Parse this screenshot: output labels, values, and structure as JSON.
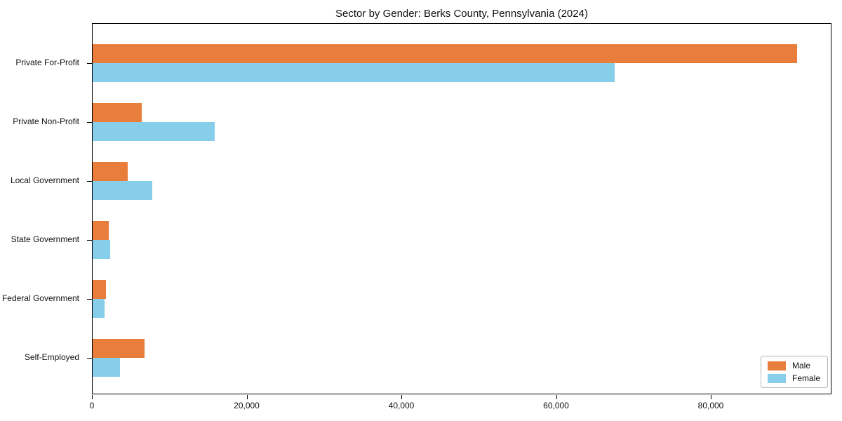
{
  "title": "Sector by Gender: Berks County, Pennsylvania (2024)",
  "chart_data": {
    "type": "bar",
    "orientation": "horizontal",
    "title": "Sector by Gender: Berks County, Pennsylvania (2024)",
    "categories": [
      "Private For-Profit",
      "Private Non-Profit",
      "Local Government",
      "State Government",
      "Federal Government",
      "Self-Employed"
    ],
    "series": [
      {
        "name": "Male",
        "color": "#e87d3c",
        "values": [
          91200,
          6400,
          4500,
          2100,
          1700,
          6700
        ]
      },
      {
        "name": "Female",
        "color": "#87ceeb",
        "values": [
          67600,
          15800,
          7700,
          2300,
          1500,
          3500
        ]
      }
    ],
    "xlabel": "",
    "ylabel": "",
    "xlim": [
      0,
      95600
    ],
    "x_ticks": [
      0,
      20000,
      40000,
      60000,
      80000
    ],
    "x_tick_labels": [
      "0",
      "20,000",
      "40,000",
      "60,000",
      "80,000"
    ],
    "grid": false,
    "legend_position": "lower right",
    "legend": {
      "items": [
        {
          "label": "Male",
          "color": "#e87d3c"
        },
        {
          "label": "Female",
          "color": "#87ceeb"
        }
      ]
    }
  }
}
